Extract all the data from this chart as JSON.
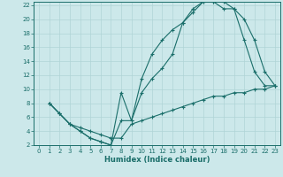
{
  "xlabel": "Humidex (Indice chaleur)",
  "bg_color": "#cce8ea",
  "grid_color": "#b0d4d6",
  "line_color": "#1a6e6a",
  "xlim": [
    -0.5,
    23.5
  ],
  "ylim": [
    2,
    22.5
  ],
  "xticks": [
    0,
    1,
    2,
    3,
    4,
    5,
    6,
    7,
    8,
    9,
    10,
    11,
    12,
    13,
    14,
    15,
    16,
    17,
    18,
    19,
    20,
    21,
    22,
    23
  ],
  "yticks": [
    2,
    4,
    6,
    8,
    10,
    12,
    14,
    16,
    18,
    20,
    22
  ],
  "line1_x": [
    1,
    2,
    3,
    4,
    5,
    6,
    7,
    8,
    9,
    10,
    11,
    12,
    13,
    14,
    15,
    16,
    17,
    18,
    19,
    20,
    21,
    22,
    23
  ],
  "line1_y": [
    8,
    6.5,
    5,
    4,
    3,
    2.5,
    2,
    9.5,
    5.5,
    11.5,
    15,
    17,
    18.5,
    19.5,
    21.5,
    22.5,
    22.5,
    21.5,
    21.5,
    20,
    17,
    12.5,
    10.5
  ],
  "line2_x": [
    1,
    2,
    3,
    4,
    5,
    6,
    7,
    8,
    9,
    10,
    11,
    12,
    13,
    14,
    15,
    16,
    17,
    18,
    19,
    20,
    21,
    22,
    23
  ],
  "line2_y": [
    8,
    6.5,
    5,
    4,
    3,
    2.5,
    2,
    5.5,
    5.5,
    9.5,
    11.5,
    13,
    15,
    19.5,
    21,
    22.5,
    22.5,
    22.5,
    21.5,
    17,
    12.5,
    10.5,
    10.5
  ],
  "line3_x": [
    1,
    2,
    3,
    4,
    5,
    6,
    7,
    8,
    9,
    10,
    11,
    12,
    13,
    14,
    15,
    16,
    17,
    18,
    19,
    20,
    21,
    22,
    23
  ],
  "line3_y": [
    8,
    6.5,
    5,
    4.5,
    4,
    3.5,
    3,
    3,
    5,
    5.5,
    6,
    6.5,
    7,
    7.5,
    8,
    8.5,
    9,
    9,
    9.5,
    9.5,
    10,
    10,
    10.5
  ]
}
